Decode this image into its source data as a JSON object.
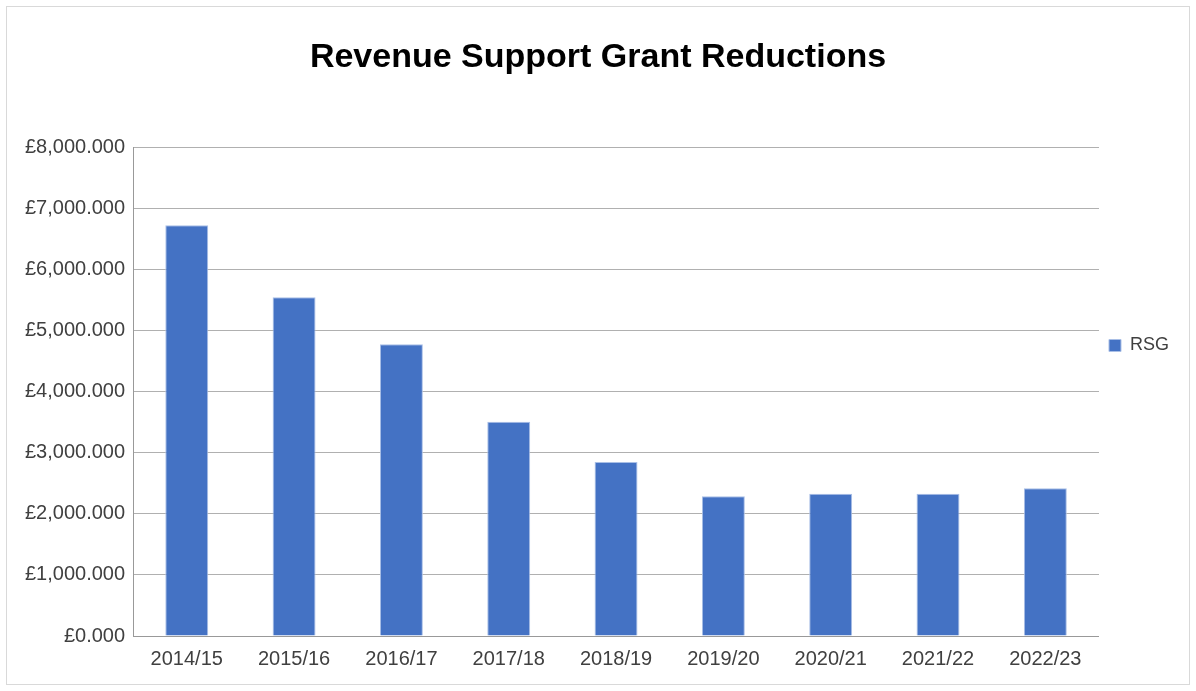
{
  "chart_data": {
    "type": "bar",
    "title": "Revenue Support Grant Reductions",
    "categories": [
      "2014/15",
      "2015/16",
      "2016/17",
      "2017/18",
      "2018/19",
      "2019/20",
      "2020/21",
      "2021/22",
      "2022/23"
    ],
    "series": [
      {
        "name": "RSG",
        "color": "#4472c4",
        "values": [
          6730,
          5550,
          4780,
          3510,
          2850,
          2290,
          2330,
          2330,
          2420
        ]
      }
    ],
    "ylim": [
      0,
      8000
    ],
    "yticks": [
      {
        "value": 0,
        "label": "£0.000"
      },
      {
        "value": 1000,
        "label": "£1,000.000"
      },
      {
        "value": 2000,
        "label": "£2,000.000"
      },
      {
        "value": 3000,
        "label": "£3,000.000"
      },
      {
        "value": 4000,
        "label": "£4,000.000"
      },
      {
        "value": 5000,
        "label": "£5,000.000"
      },
      {
        "value": 6000,
        "label": "£6,000.000"
      },
      {
        "value": 7000,
        "label": "£7,000.000"
      },
      {
        "value": 8000,
        "label": "£8,000.000"
      }
    ],
    "grid": "y",
    "legend": "right"
  }
}
